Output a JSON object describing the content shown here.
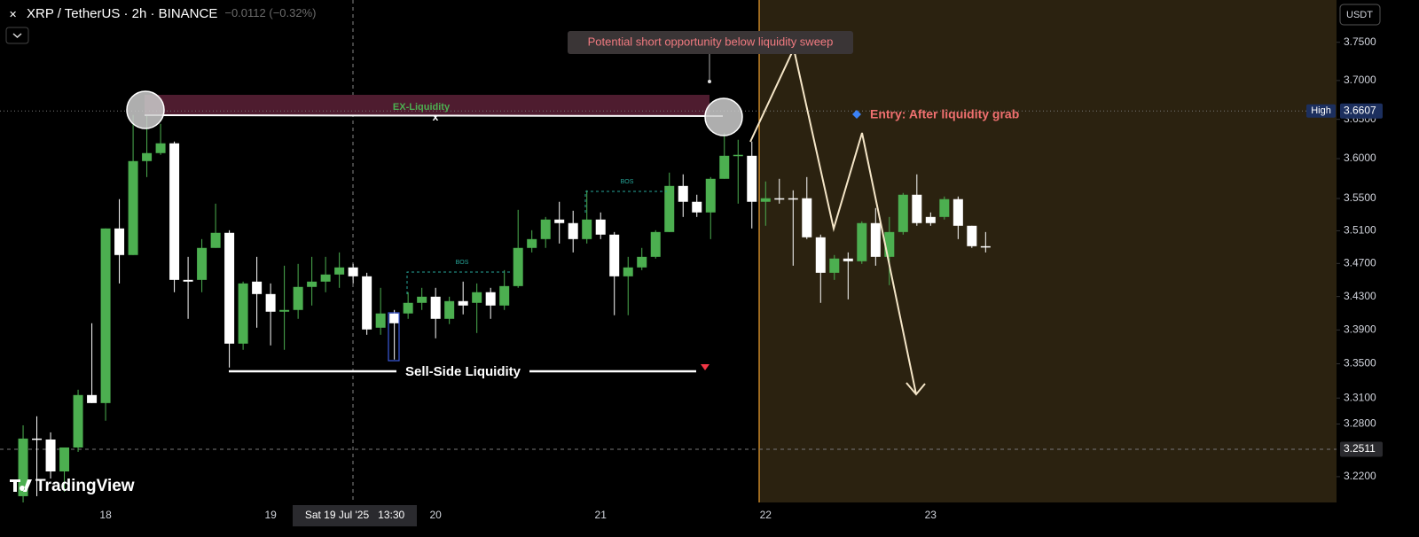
{
  "chart_data": {
    "type": "candlestick",
    "title": "XRP / TetherUS · 2h · BINANCE",
    "subtitle": "−0.0112 (−0.32%)",
    "currency": "USDT",
    "x": [
      17.5,
      17.5833,
      17.6667,
      17.75,
      17.8333,
      17.9167,
      18,
      18.0833,
      18.1667,
      18.25,
      18.3333,
      18.4167,
      18.5,
      18.5833,
      18.6667,
      18.75,
      18.8333,
      18.9167,
      19,
      19.0833,
      19.1667,
      19.25,
      19.3333,
      19.4167,
      19.5,
      19.5833,
      19.6667,
      19.75,
      19.8333,
      19.9167,
      20,
      20.0833,
      20.1667,
      20.25,
      20.3333,
      20.4167,
      20.5,
      20.5833,
      20.6667,
      20.75,
      20.8333,
      20.9167,
      21,
      21.0833,
      21.1667,
      21.25,
      21.3333,
      21.4167,
      21.5,
      21.5833,
      21.6667,
      21.75,
      21.8333,
      21.9167,
      22,
      22.0833,
      22.1667,
      22.25,
      22.3333,
      22.4167,
      22.5,
      22.5833,
      22.6667,
      22.75,
      22.8333,
      22.9167,
      23,
      23.0833,
      23.1667,
      23.25,
      23.3333
    ],
    "open": [
      3.198,
      3.2633,
      3.2622,
      3.2259,
      3.2531,
      3.3135,
      3.3042,
      3.5129,
      3.4803,
      3.5969,
      3.607,
      3.6194,
      3.4501,
      3.4501,
      3.489,
      3.5075,
      3.3738,
      3.448,
      3.433,
      3.4118,
      3.4139,
      3.4416,
      3.448,
      3.4566,
      3.4652,
      3.4544,
      3.3927,
      3.4097,
      3.4097,
      3.4224,
      3.4298,
      3.4033,
      3.4245,
      3.4224,
      3.4352,
      3.4192,
      3.4426,
      3.489,
      3.4998,
      3.5239,
      3.5195,
      3.4998,
      3.5239,
      3.5053,
      3.4544,
      3.4652,
      3.4781,
      3.5085,
      3.5657,
      3.5459,
      3.5327,
      3.5746,
      3.6036,
      3.6036,
      3.5459,
      3.5503,
      3.5503,
      3.5503,
      3.502,
      3.4587,
      3.476,
      3.4727,
      3.5195,
      3.4781,
      3.5085,
      3.5547,
      3.5271,
      3.5271,
      3.5492,
      3.5162,
      3.4911
    ],
    "high": [
      3.2785,
      3.2889,
      3.2704,
      3.2531,
      3.3197,
      3.398,
      3.5129,
      3.5492,
      3.6555,
      3.6555,
      3.6442,
      3.6216,
      3.4781,
      3.4998,
      3.5436,
      3.5107,
      3.448,
      3.4781,
      3.4458,
      3.4673,
      3.4695,
      3.4781,
      3.4781,
      3.4835,
      3.4695,
      3.4587,
      3.4405,
      3.4139,
      3.4352,
      3.4405,
      3.4405,
      3.4298,
      3.448,
      3.4458,
      3.4405,
      3.4619,
      3.5359,
      3.5107,
      3.5271,
      3.5459,
      3.5348,
      3.5602,
      3.5327,
      3.5085,
      3.4781,
      3.489,
      3.5107,
      3.5824,
      3.5802,
      3.5547,
      3.5768,
      3.6329,
      3.6239,
      3.6216,
      3.5713,
      3.5746,
      3.5602,
      3.5768,
      3.5053,
      3.4803,
      3.4835,
      3.5217,
      3.5381,
      3.5271,
      3.5569,
      3.5802,
      3.5327,
      3.5525,
      3.5525,
      3.5162,
      3.5085
    ],
    "low": [
      3.191,
      3.198,
      3.2179,
      3.2029,
      3.2481,
      3.3042,
      3.2838,
      3.4458,
      3.4803,
      3.5768,
      3.6048,
      3.4352,
      3.4033,
      3.4352,
      3.489,
      3.3456,
      3.3665,
      3.3927,
      3.3717,
      3.3665,
      3.4033,
      3.4192,
      3.4352,
      3.4405,
      3.4458,
      3.3843,
      3.3843,
      3.355,
      3.4033,
      3.4139,
      3.3801,
      3.397,
      3.4086,
      3.3864,
      3.4033,
      3.4139,
      3.4405,
      3.4835,
      3.489,
      3.4944,
      3.4835,
      3.4944,
      3.4998,
      3.4076,
      3.4076,
      3.4619,
      3.476,
      3.5085,
      3.5271,
      3.5271,
      3.4998,
      3.5746,
      3.5436,
      3.5129,
      3.5162,
      3.5436,
      3.4673,
      3.4998,
      3.4224,
      3.4501,
      3.4266,
      3.4695,
      3.4673,
      3.4437,
      3.5053,
      3.5162,
      3.5162,
      3.5239,
      3.4998,
      3.489,
      3.4835
    ],
    "close": [
      3.2633,
      3.2622,
      3.2259,
      3.2531,
      3.3135,
      3.3042,
      3.5129,
      3.4803,
      3.5969,
      3.607,
      3.6194,
      3.4501,
      3.448,
      3.489,
      3.5075,
      3.3738,
      3.4458,
      3.433,
      3.4118,
      3.4139,
      3.4416,
      3.448,
      3.4566,
      3.4652,
      3.4544,
      3.3906,
      3.4097,
      3.398,
      3.4224,
      3.4298,
      3.4033,
      3.4245,
      3.4192,
      3.4352,
      3.4192,
      3.4426,
      3.489,
      3.4998,
      3.5239,
      3.5195,
      3.4998,
      3.5239,
      3.5053,
      3.4544,
      3.4652,
      3.4781,
      3.5085,
      3.5657,
      3.5459,
      3.5327,
      3.5746,
      3.6036,
      3.6048,
      3.5459,
      3.5503,
      3.5492,
      3.5492,
      3.502,
      3.4587,
      3.476,
      3.4727,
      3.5195,
      3.4781,
      3.5085,
      3.5547,
      3.5195,
      3.5195,
      3.5492,
      3.5162,
      3.4911,
      3.4901
    ],
    "up_color": "#4caf50",
    "down_color": "#ffffff",
    "xlim": [
      17.36,
      25.46
    ],
    "xticks": [
      18,
      19,
      20,
      21,
      22,
      23
    ],
    "ylim": [
      3.191,
      3.806
    ],
    "log_scale": true,
    "yticks": [
      {
        "value": 3.22,
        "label": "3.2200"
      },
      {
        "value": 3.28,
        "label": "3.2800"
      },
      {
        "value": 3.31,
        "label": "3.3100"
      },
      {
        "value": 3.35,
        "label": "3.3500"
      },
      {
        "value": 3.39,
        "label": "3.3900"
      },
      {
        "value": 3.43,
        "label": "3.4300"
      },
      {
        "value": 3.47,
        "label": "3.4700"
      },
      {
        "value": 3.51,
        "label": "3.5100"
      },
      {
        "value": 3.55,
        "label": "3.5500"
      },
      {
        "value": 3.6,
        "label": "3.6000"
      },
      {
        "value": 3.65,
        "label": "3.6500"
      },
      {
        "value": 3.7,
        "label": "3.7000"
      },
      {
        "value": 3.75,
        "label": "3.7500"
      }
    ],
    "price_lines": [
      {
        "label": "High",
        "value": 3.6607
      },
      {
        "value": 3.2511
      }
    ],
    "annotations": {
      "callout": "Potential short opportunity below liquidity sweep",
      "zone": "EX-Liquidity",
      "sweep_mark": "x",
      "entry": "Entry: After liquidity grab",
      "sell_side": "Sell-Side Liquidity",
      "bos_upper": "BOS",
      "bos_lower": "BOS",
      "crosshair_time": "Sat 19 Jul '25   13:30"
    }
  },
  "branding": "TradingView"
}
